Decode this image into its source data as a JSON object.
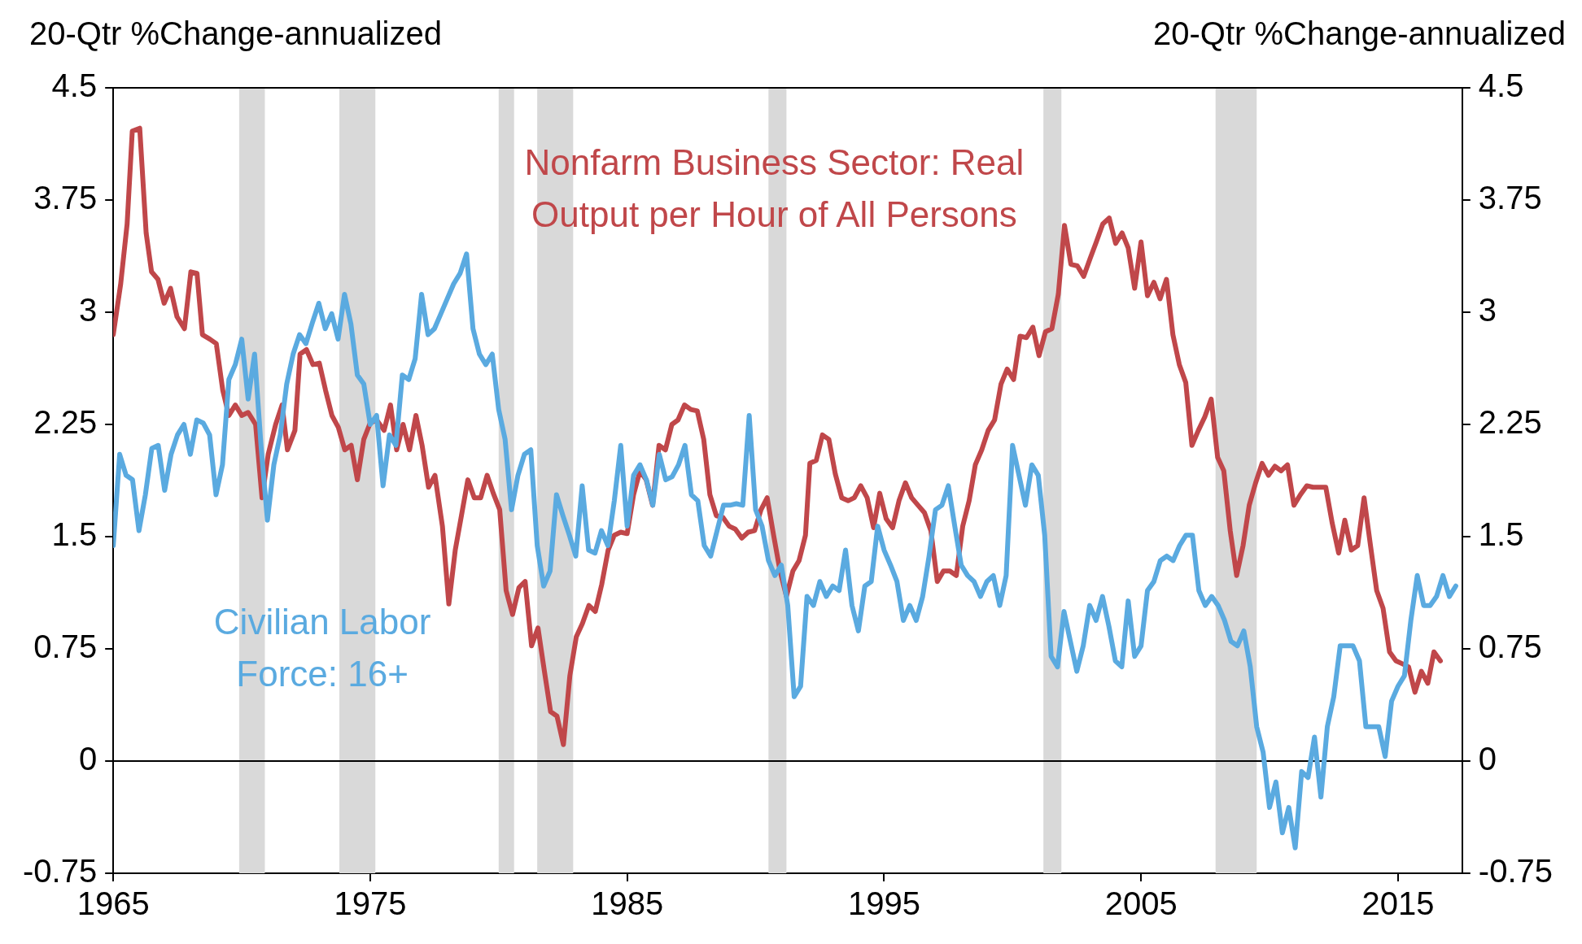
{
  "chart_data": {
    "type": "line",
    "ylabel": "20-Qtr %Change-annualized",
    "y2label": "20-Qtr %Change-annualized",
    "xlim": [
      1965,
      2017.5
    ],
    "xticks": [
      1965,
      1975,
      1985,
      1995,
      2005,
      2015
    ],
    "ylim": [
      -0.75,
      4.5
    ],
    "yticks": [
      -0.75,
      0,
      0.75,
      1.5,
      2.25,
      3,
      3.75,
      4.5
    ],
    "y2lim": [
      -0.75,
      4.5
    ],
    "y2ticks": [
      -0.75,
      0,
      0.75,
      1.5,
      2.25,
      3,
      3.75,
      4.5
    ],
    "grid": false,
    "legend": false,
    "line_style": "solid",
    "marker": "none",
    "ref_lines": [
      {
        "axis": "y",
        "value": 0,
        "color": "#000000"
      }
    ],
    "bands": [
      {
        "axis": "x",
        "from": 1969.9,
        "to": 1970.9,
        "color": "#d9d9d9"
      },
      {
        "axis": "x",
        "from": 1973.8,
        "to": 1975.2,
        "color": "#d9d9d9"
      },
      {
        "axis": "x",
        "from": 1980.0,
        "to": 1980.6,
        "color": "#d9d9d9"
      },
      {
        "axis": "x",
        "from": 1981.5,
        "to": 1982.9,
        "color": "#d9d9d9"
      },
      {
        "axis": "x",
        "from": 1990.5,
        "to": 1991.2,
        "color": "#d9d9d9"
      },
      {
        "axis": "x",
        "from": 2001.2,
        "to": 2001.9,
        "color": "#d9d9d9"
      },
      {
        "axis": "x",
        "from": 2007.9,
        "to": 2009.5,
        "color": "#d9d9d9"
      }
    ],
    "series": [
      {
        "name": "Civilian Labor Force: 16+",
        "color": "#5aaae0",
        "values": [
          1.44,
          2.05,
          1.91,
          1.88,
          1.54,
          1.78,
          2.09,
          2.11,
          1.81,
          2.05,
          2.18,
          2.25,
          2.05,
          2.28,
          2.26,
          2.18,
          1.78,
          1.98,
          2.55,
          2.65,
          2.82,
          2.42,
          2.72,
          2.11,
          1.61,
          1.98,
          2.18,
          2.52,
          2.72,
          2.85,
          2.79,
          2.93,
          3.06,
          2.89,
          2.99,
          2.82,
          3.12,
          2.92,
          2.58,
          2.52,
          2.25,
          2.31,
          1.84,
          2.18,
          2.11,
          2.58,
          2.55,
          2.69,
          3.12,
          2.85,
          2.89,
          2.99,
          3.09,
          3.19,
          3.26,
          3.39,
          2.89,
          2.72,
          2.65,
          2.72,
          2.35,
          2.15,
          1.68,
          1.91,
          2.05,
          2.08,
          1.44,
          1.17,
          1.27,
          1.78,
          1.64,
          1.51,
          1.37,
          1.84,
          1.41,
          1.39,
          1.54,
          1.44,
          1.74,
          2.11,
          1.57,
          1.91,
          1.98,
          1.88,
          1.71,
          2.05,
          1.88,
          1.9,
          1.98,
          2.11,
          1.78,
          1.74,
          1.44,
          1.37,
          1.54,
          1.71,
          1.71,
          1.72,
          1.71,
          2.31,
          1.68,
          1.57,
          1.34,
          1.24,
          1.31,
          1.04,
          0.43,
          0.5,
          1.1,
          1.04,
          1.2,
          1.1,
          1.17,
          1.14,
          1.41,
          1.04,
          0.87,
          1.17,
          1.2,
          1.57,
          1.41,
          1.31,
          1.2,
          0.94,
          1.04,
          0.94,
          1.1,
          1.37,
          1.68,
          1.71,
          1.84,
          1.57,
          1.31,
          1.24,
          1.2,
          1.1,
          1.2,
          1.24,
          1.04,
          1.24,
          2.11,
          1.91,
          1.71,
          1.98,
          1.91,
          1.51,
          0.7,
          0.63,
          1.0,
          0.8,
          0.6,
          0.77,
          1.04,
          0.94,
          1.1,
          0.9,
          0.67,
          0.63,
          1.07,
          0.7,
          0.77,
          1.14,
          1.2,
          1.34,
          1.37,
          1.34,
          1.44,
          1.51,
          1.51,
          1.14,
          1.04,
          1.1,
          1.04,
          0.94,
          0.8,
          0.77,
          0.87,
          0.63,
          0.23,
          0.06,
          -0.31,
          -0.14,
          -0.48,
          -0.31,
          -0.58,
          -0.07,
          -0.11,
          0.16,
          -0.24,
          0.23,
          0.43,
          0.77,
          0.77,
          0.77,
          0.67,
          0.23,
          0.23,
          0.23,
          0.03,
          0.4,
          0.5,
          0.57,
          0.94,
          1.24,
          1.04,
          1.04,
          1.1,
          1.24,
          1.1,
          1.17
        ],
        "x": [
          1965,
          1965.25,
          1965.5,
          1965.75,
          1966,
          1966.25,
          1966.5,
          1966.75,
          1967,
          1967.25,
          1967.5,
          1967.75,
          1968,
          1968.25,
          1968.5,
          1968.75,
          1969,
          1969.25,
          1969.5,
          1969.75,
          1970,
          1970.25,
          1970.5,
          1970.75,
          1971,
          1971.25,
          1971.5,
          1971.75,
          1972,
          1972.25,
          1972.5,
          1972.75,
          1973,
          1973.25,
          1973.5,
          1973.75,
          1974,
          1974.25,
          1974.5,
          1974.75,
          1975,
          1975.25,
          1975.5,
          1975.75,
          1976,
          1976.25,
          1976.5,
          1976.75,
          1977,
          1977.25,
          1977.5,
          1977.75,
          1978,
          1978.25,
          1978.5,
          1978.75,
          1979,
          1979.25,
          1979.5,
          1979.75,
          1980,
          1980.25,
          1980.5,
          1980.75,
          1981,
          1981.25,
          1981.5,
          1981.75,
          1982,
          1982.25,
          1982.5,
          1982.75,
          1983,
          1983.25,
          1983.5,
          1983.75,
          1984,
          1984.25,
          1984.5,
          1984.75,
          1985,
          1985.25,
          1985.5,
          1985.75,
          1986,
          1986.25,
          1986.5,
          1986.75,
          1987,
          1987.25,
          1987.5,
          1987.75,
          1988,
          1988.25,
          1988.5,
          1988.75,
          1989,
          1989.25,
          1989.5,
          1989.75,
          1990,
          1990.25,
          1990.5,
          1990.75,
          1991,
          1991.25,
          1991.5,
          1991.75,
          1992,
          1992.25,
          1992.5,
          1992.75,
          1993,
          1993.25,
          1993.5,
          1993.75,
          1994,
          1994.25,
          1994.5,
          1994.75,
          1995,
          1995.25,
          1995.5,
          1995.75,
          1996,
          1996.25,
          1996.5,
          1996.75,
          1997,
          1997.25,
          1997.5,
          1997.75,
          1998,
          1998.25,
          1998.5,
          1998.75,
          1999,
          1999.25,
          1999.5,
          1999.75,
          2000,
          2000.25,
          2000.5,
          2000.75,
          2001,
          2001.25,
          2001.5,
          2001.75,
          2002,
          2002.25,
          2002.5,
          2002.75,
          2003,
          2003.25,
          2003.5,
          2003.75,
          2004,
          2004.25,
          2004.5,
          2004.75,
          2005,
          2005.25,
          2005.5,
          2005.75,
          2006,
          2006.25,
          2006.5,
          2006.75,
          2007,
          2007.25,
          2007.5,
          2007.75,
          2008,
          2008.25,
          2008.5,
          2008.75,
          2009,
          2009.25,
          2009.5,
          2009.75,
          2010,
          2010.25,
          2010.5,
          2010.75,
          2011,
          2011.25,
          2011.5,
          2011.75,
          2012,
          2012.25,
          2012.5,
          2012.75,
          2013,
          2013.25,
          2013.5,
          2013.75,
          2014,
          2014.25,
          2014.5,
          2014.75,
          2015,
          2015.25,
          2015.5,
          2015.75,
          2016,
          2016.25,
          2016.5,
          2016.75,
          2017,
          2017.25
        ]
      },
      {
        "name": "Nonfarm Business Sector: Real Output per Hour of All Persons",
        "color": "#c0474a",
        "x": [
          1965.0,
          1965.29,
          1965.54,
          1965.74,
          1966.03,
          1966.28,
          1966.49,
          1966.74,
          1966.98,
          1967.23,
          1967.48,
          1967.77,
          1968.02,
          1968.26,
          1968.47,
          1968.76,
          1969.01,
          1969.26,
          1969.5,
          1969.75,
          1970.0,
          1970.25,
          1970.54,
          1970.79,
          1971.03,
          1971.32,
          1971.57,
          1971.78,
          1972.07,
          1972.27,
          1972.52,
          1972.77,
          1973.02,
          1973.26,
          1973.51,
          1973.76,
          1974.01,
          1974.26,
          1974.5,
          1974.75,
          1975.0,
          1975.25,
          1975.54,
          1975.79,
          1976.03,
          1976.28,
          1976.53,
          1976.78,
          1977.02,
          1977.27,
          1977.52,
          1977.81,
          1978.06,
          1978.31,
          1978.55,
          1978.8,
          1979.05,
          1979.3,
          1979.55,
          1979.79,
          1980.04,
          1980.29,
          1980.54,
          1980.79,
          1981.03,
          1981.28,
          1981.53,
          1981.78,
          1982.02,
          1982.27,
          1982.52,
          1982.77,
          1983.02,
          1983.26,
          1983.51,
          1983.76,
          1984.01,
          1984.26,
          1984.5,
          1984.75,
          1985.0,
          1985.25,
          1985.5,
          1985.74,
          1985.99,
          1986.24,
          1986.49,
          1986.74,
          1986.98,
          1987.23,
          1987.48,
          1987.73,
          1987.98,
          1988.22,
          1988.47,
          1988.72,
          1988.97,
          1989.21,
          1989.46,
          1989.71,
          1989.96,
          1990.21,
          1990.45,
          1990.7,
          1990.95,
          1991.2,
          1991.45,
          1991.69,
          1991.94,
          1992.11,
          1992.36,
          1992.6,
          1992.85,
          1993.1,
          1993.35,
          1993.6,
          1993.84,
          1994.09,
          1994.34,
          1994.59,
          1994.83,
          1995.08,
          1995.33,
          1995.58,
          1995.83,
          1996.07,
          1996.32,
          1996.57,
          1996.82,
          1997.07,
          1997.31,
          1997.56,
          1997.81,
          1998.06,
          1998.31,
          1998.55,
          1998.8,
          1999.05,
          1999.3,
          1999.55,
          1999.79,
          2000.04,
          2000.29,
          2000.54,
          2000.79,
          2001.03,
          2001.28,
          2001.53,
          2001.78,
          2002.02,
          2002.27,
          2002.52,
          2002.77,
          2003.02,
          2003.26,
          2003.51,
          2003.76,
          2004.01,
          2004.26,
          2004.5,
          2004.75,
          2005.0,
          2005.25,
          2005.5,
          2005.74,
          2005.99,
          2006.24,
          2006.49,
          2006.74,
          2006.98,
          2007.23,
          2007.48,
          2007.73,
          2007.98,
          2008.22,
          2008.47,
          2008.72,
          2008.97,
          2009.21,
          2009.46,
          2009.71,
          2009.96,
          2010.21,
          2010.45,
          2010.7,
          2010.95,
          2011.2,
          2011.45,
          2011.69,
          2012.19,
          2012.44,
          2012.69,
          2012.93,
          2013.18,
          2013.43,
          2013.68,
          2013.93,
          2014.17,
          2014.42,
          2014.67,
          2014.92,
          2015.17,
          2015.41,
          2015.66,
          2015.91,
          2016.16,
          2016.4,
          2016.65
        ],
        "values": [
          2.85,
          3.19,
          3.59,
          4.21,
          4.23,
          3.53,
          3.27,
          3.22,
          3.06,
          3.16,
          2.97,
          2.89,
          3.27,
          3.26,
          2.85,
          2.82,
          2.79,
          2.48,
          2.31,
          2.38,
          2.31,
          2.33,
          2.25,
          1.76,
          2.05,
          2.25,
          2.38,
          2.08,
          2.21,
          2.72,
          2.75,
          2.65,
          2.66,
          2.48,
          2.31,
          2.23,
          2.08,
          2.11,
          1.88,
          2.15,
          2.26,
          2.28,
          2.21,
          2.38,
          2.08,
          2.25,
          2.08,
          2.31,
          2.11,
          1.83,
          1.91,
          1.57,
          1.05,
          1.41,
          1.64,
          1.88,
          1.76,
          1.76,
          1.91,
          1.79,
          1.68,
          1.14,
          0.98,
          1.16,
          1.2,
          0.77,
          0.89,
          0.6,
          0.33,
          0.3,
          0.11,
          0.57,
          0.83,
          0.92,
          1.04,
          1.0,
          1.18,
          1.41,
          1.51,
          1.53,
          1.52,
          1.78,
          1.94,
          1.88,
          1.71,
          2.11,
          2.08,
          2.25,
          2.28,
          2.38,
          2.35,
          2.34,
          2.15,
          1.78,
          1.64,
          1.63,
          1.57,
          1.55,
          1.49,
          1.53,
          1.54,
          1.68,
          1.76,
          1.51,
          1.27,
          1.1,
          1.27,
          1.34,
          1.51,
          1.99,
          2.01,
          2.18,
          2.15,
          1.92,
          1.76,
          1.74,
          1.76,
          1.84,
          1.76,
          1.56,
          1.79,
          1.62,
          1.56,
          1.74,
          1.86,
          1.76,
          1.71,
          1.66,
          1.54,
          1.2,
          1.27,
          1.27,
          1.24,
          1.57,
          1.74,
          1.98,
          2.08,
          2.21,
          2.28,
          2.52,
          2.62,
          2.55,
          2.84,
          2.83,
          2.9,
          2.71,
          2.87,
          2.89,
          3.12,
          3.58,
          3.32,
          3.31,
          3.24,
          3.36,
          3.47,
          3.59,
          3.63,
          3.46,
          3.53,
          3.43,
          3.16,
          3.47,
          3.11,
          3.2,
          3.09,
          3.22,
          2.85,
          2.65,
          2.53,
          2.11,
          2.21,
          2.3,
          2.42,
          2.03,
          1.94,
          1.54,
          1.24,
          1.44,
          1.71,
          1.86,
          1.99,
          1.91,
          1.97,
          1.94,
          1.98,
          1.71,
          1.78,
          1.84,
          1.83,
          1.83,
          1.59,
          1.39,
          1.61,
          1.41,
          1.44,
          1.76,
          1.44,
          1.14,
          1.02,
          0.73,
          0.67,
          0.65,
          0.63,
          0.46,
          0.6,
          0.52,
          0.73,
          0.67
        ]
      }
    ]
  }
}
